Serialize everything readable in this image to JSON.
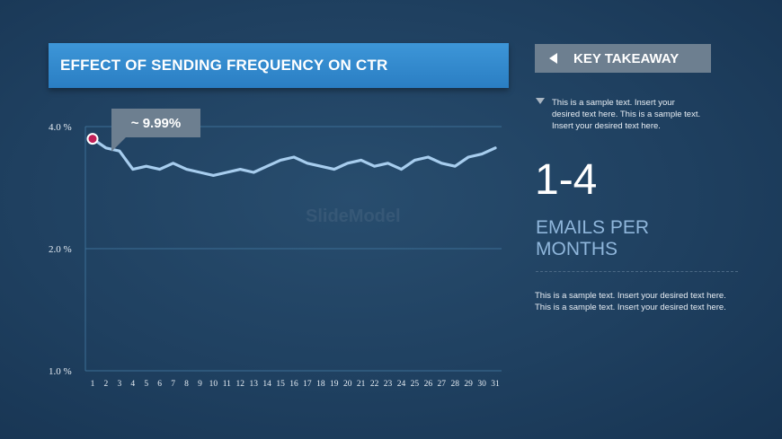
{
  "header": {
    "title": "EFFECT OF SENDING FREQUENCY ON CTR"
  },
  "takeaway": {
    "label": "KEY TAKEAWAY",
    "note": "This is a sample text. Insert your desired text here. This is a sample text. Insert your desired text here.",
    "big_number": "1-4",
    "big_sub": "EMAILS PER MONTHS",
    "body": "This is a sample text. Insert your desired text here. This is a sample text. Insert your desired text here."
  },
  "callout": {
    "text": "~ 9.99%"
  },
  "watermark": "SlideModel",
  "colors": {
    "line": "#a7cdee",
    "marker": "#c21f57",
    "axis": "#3c6e95"
  },
  "chart_data": {
    "type": "line",
    "categories": [
      "1",
      "2",
      "3",
      "4",
      "5",
      "6",
      "7",
      "8",
      "9",
      "10",
      "11",
      "12",
      "13",
      "14",
      "15",
      "16",
      "17",
      "18",
      "19",
      "20",
      "21",
      "22",
      "23",
      "24",
      "25",
      "26",
      "27",
      "28",
      "29",
      "30",
      "31"
    ],
    "values": [
      3.8,
      3.65,
      3.6,
      3.3,
      3.35,
      3.3,
      3.4,
      3.3,
      3.25,
      3.2,
      3.25,
      3.3,
      3.25,
      3.35,
      3.45,
      3.5,
      3.4,
      3.35,
      3.3,
      3.4,
      3.45,
      3.35,
      3.4,
      3.3,
      3.45,
      3.5,
      3.4,
      3.35,
      3.5,
      3.55,
      3.65
    ],
    "yticks": [
      1.0,
      2.0,
      4.0
    ],
    "ytick_labels": [
      "1.0 %",
      "2.0 %",
      "4.0 %"
    ],
    "highlight_index": 0,
    "grid": true
  }
}
